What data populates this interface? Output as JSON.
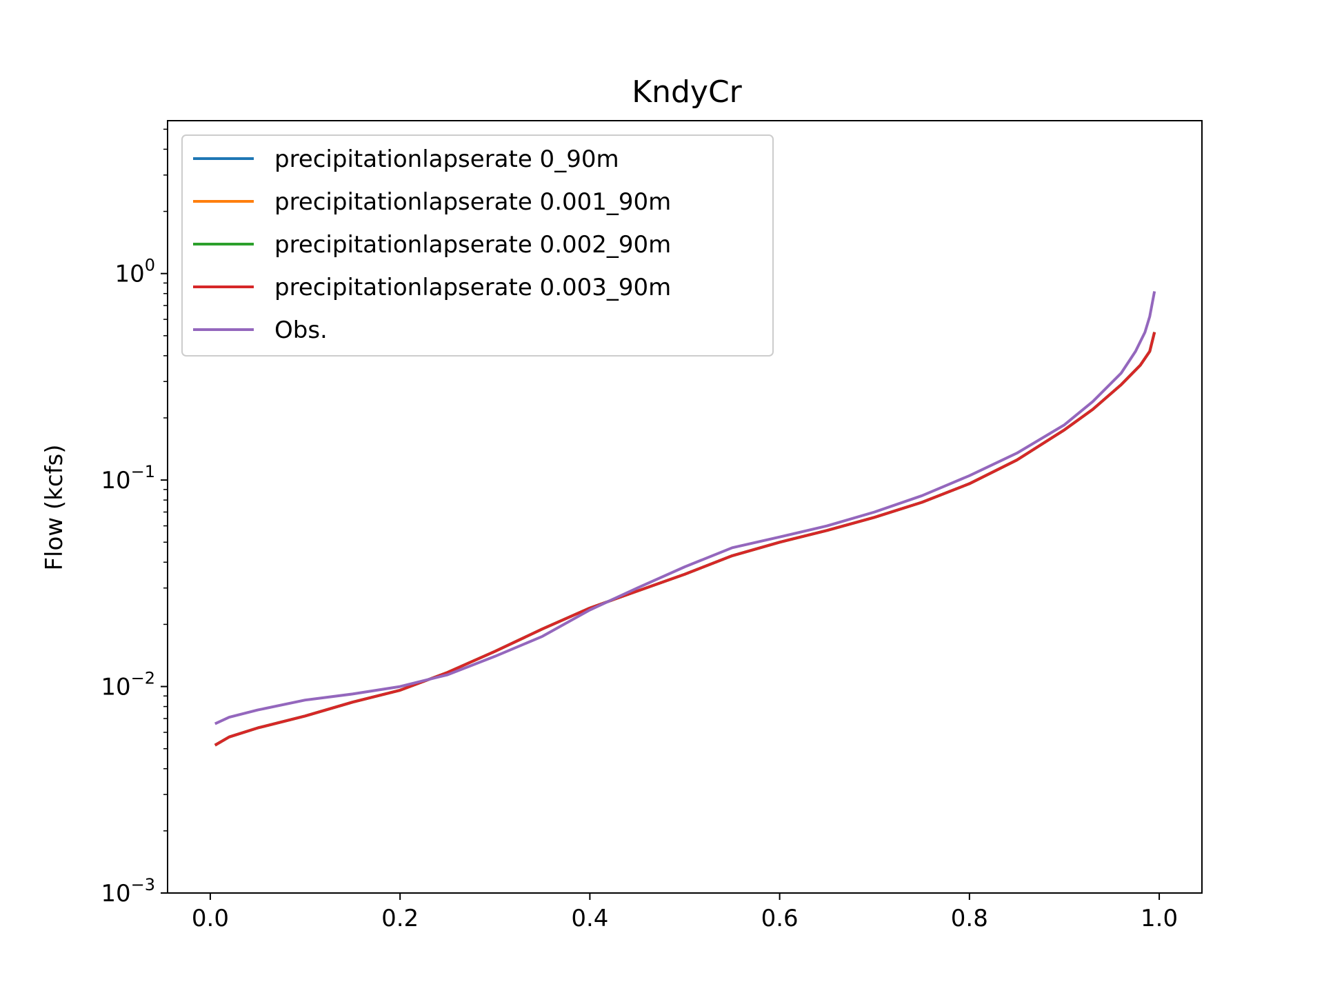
{
  "chart_data": {
    "type": "line",
    "title": "KndyCr",
    "xlabel": "",
    "ylabel": "Flow (kcfs)",
    "xlim": [
      -0.045,
      1.045
    ],
    "ylim": [
      0.001,
      5.5
    ],
    "yscale": "log",
    "grid": false,
    "legend": "upper left",
    "xticks": [
      {
        "value": 0.0,
        "label": "0.0"
      },
      {
        "value": 0.2,
        "label": "0.2"
      },
      {
        "value": 0.4,
        "label": "0.4"
      },
      {
        "value": 0.6,
        "label": "0.6"
      },
      {
        "value": 0.8,
        "label": "0.8"
      },
      {
        "value": 1.0,
        "label": "1.0"
      }
    ],
    "yticks": [
      {
        "value": 0.001,
        "base": "10",
        "exp": "−3"
      },
      {
        "value": 0.01,
        "base": "10",
        "exp": "−2"
      },
      {
        "value": 0.1,
        "base": "10",
        "exp": "−1"
      },
      {
        "value": 1,
        "base": "10",
        "exp": "0"
      }
    ],
    "series": [
      {
        "name": "precipitationlapserate 0_90m",
        "color": "#1f77b4",
        "x": [
          0.005,
          0.02,
          0.05,
          0.1,
          0.15,
          0.2,
          0.25,
          0.3,
          0.35,
          0.4,
          0.45,
          0.5,
          0.55,
          0.6,
          0.65,
          0.7,
          0.75,
          0.8,
          0.85,
          0.9,
          0.93,
          0.96,
          0.98,
          0.99,
          0.995
        ],
        "y": [
          0.0052,
          0.0057,
          0.0063,
          0.0072,
          0.0084,
          0.0096,
          0.0117,
          0.0148,
          0.019,
          0.024,
          0.029,
          0.035,
          0.043,
          0.05,
          0.057,
          0.066,
          0.078,
          0.096,
          0.125,
          0.175,
          0.22,
          0.29,
          0.36,
          0.42,
          0.52
        ]
      },
      {
        "name": "precipitationlapserate 0.001_90m",
        "color": "#ff7f0e",
        "x": [
          0.005,
          0.02,
          0.05,
          0.1,
          0.15,
          0.2,
          0.25,
          0.3,
          0.35,
          0.4,
          0.45,
          0.5,
          0.55,
          0.6,
          0.65,
          0.7,
          0.75,
          0.8,
          0.85,
          0.9,
          0.93,
          0.96,
          0.98,
          0.99,
          0.995
        ],
        "y": [
          0.0052,
          0.0057,
          0.0063,
          0.0072,
          0.0084,
          0.0096,
          0.0117,
          0.0148,
          0.019,
          0.024,
          0.029,
          0.035,
          0.043,
          0.05,
          0.057,
          0.066,
          0.078,
          0.096,
          0.125,
          0.175,
          0.22,
          0.29,
          0.36,
          0.42,
          0.52
        ]
      },
      {
        "name": "precipitationlapserate 0.002_90m",
        "color": "#2ca02c",
        "x": [
          0.005,
          0.02,
          0.05,
          0.1,
          0.15,
          0.2,
          0.25,
          0.3,
          0.35,
          0.4,
          0.45,
          0.5,
          0.55,
          0.6,
          0.65,
          0.7,
          0.75,
          0.8,
          0.85,
          0.9,
          0.93,
          0.96,
          0.98,
          0.99,
          0.995
        ],
        "y": [
          0.0052,
          0.0057,
          0.0063,
          0.0072,
          0.0084,
          0.0096,
          0.0117,
          0.0148,
          0.019,
          0.024,
          0.029,
          0.035,
          0.043,
          0.05,
          0.057,
          0.066,
          0.078,
          0.096,
          0.125,
          0.175,
          0.22,
          0.29,
          0.36,
          0.42,
          0.52
        ]
      },
      {
        "name": "precipitationlapserate 0.003_90m",
        "color": "#d62728",
        "x": [
          0.005,
          0.02,
          0.05,
          0.1,
          0.15,
          0.2,
          0.25,
          0.3,
          0.35,
          0.4,
          0.45,
          0.5,
          0.55,
          0.6,
          0.65,
          0.7,
          0.75,
          0.8,
          0.85,
          0.9,
          0.93,
          0.96,
          0.98,
          0.99,
          0.995
        ],
        "y": [
          0.0052,
          0.0057,
          0.0063,
          0.0072,
          0.0084,
          0.0096,
          0.0117,
          0.0148,
          0.019,
          0.024,
          0.029,
          0.035,
          0.043,
          0.05,
          0.057,
          0.066,
          0.078,
          0.096,
          0.125,
          0.175,
          0.22,
          0.29,
          0.36,
          0.42,
          0.52
        ]
      },
      {
        "name": "Obs.",
        "color": "#9467bd",
        "x": [
          0.005,
          0.02,
          0.05,
          0.1,
          0.15,
          0.2,
          0.25,
          0.3,
          0.35,
          0.4,
          0.45,
          0.5,
          0.55,
          0.6,
          0.65,
          0.7,
          0.75,
          0.8,
          0.85,
          0.9,
          0.93,
          0.96,
          0.975,
          0.985,
          0.99,
          0.995
        ],
        "y": [
          0.0066,
          0.0071,
          0.0077,
          0.0086,
          0.0092,
          0.01,
          0.0114,
          0.014,
          0.0175,
          0.0235,
          0.03,
          0.038,
          0.047,
          0.053,
          0.06,
          0.07,
          0.084,
          0.105,
          0.135,
          0.185,
          0.24,
          0.33,
          0.42,
          0.52,
          0.62,
          0.82
        ]
      }
    ]
  }
}
